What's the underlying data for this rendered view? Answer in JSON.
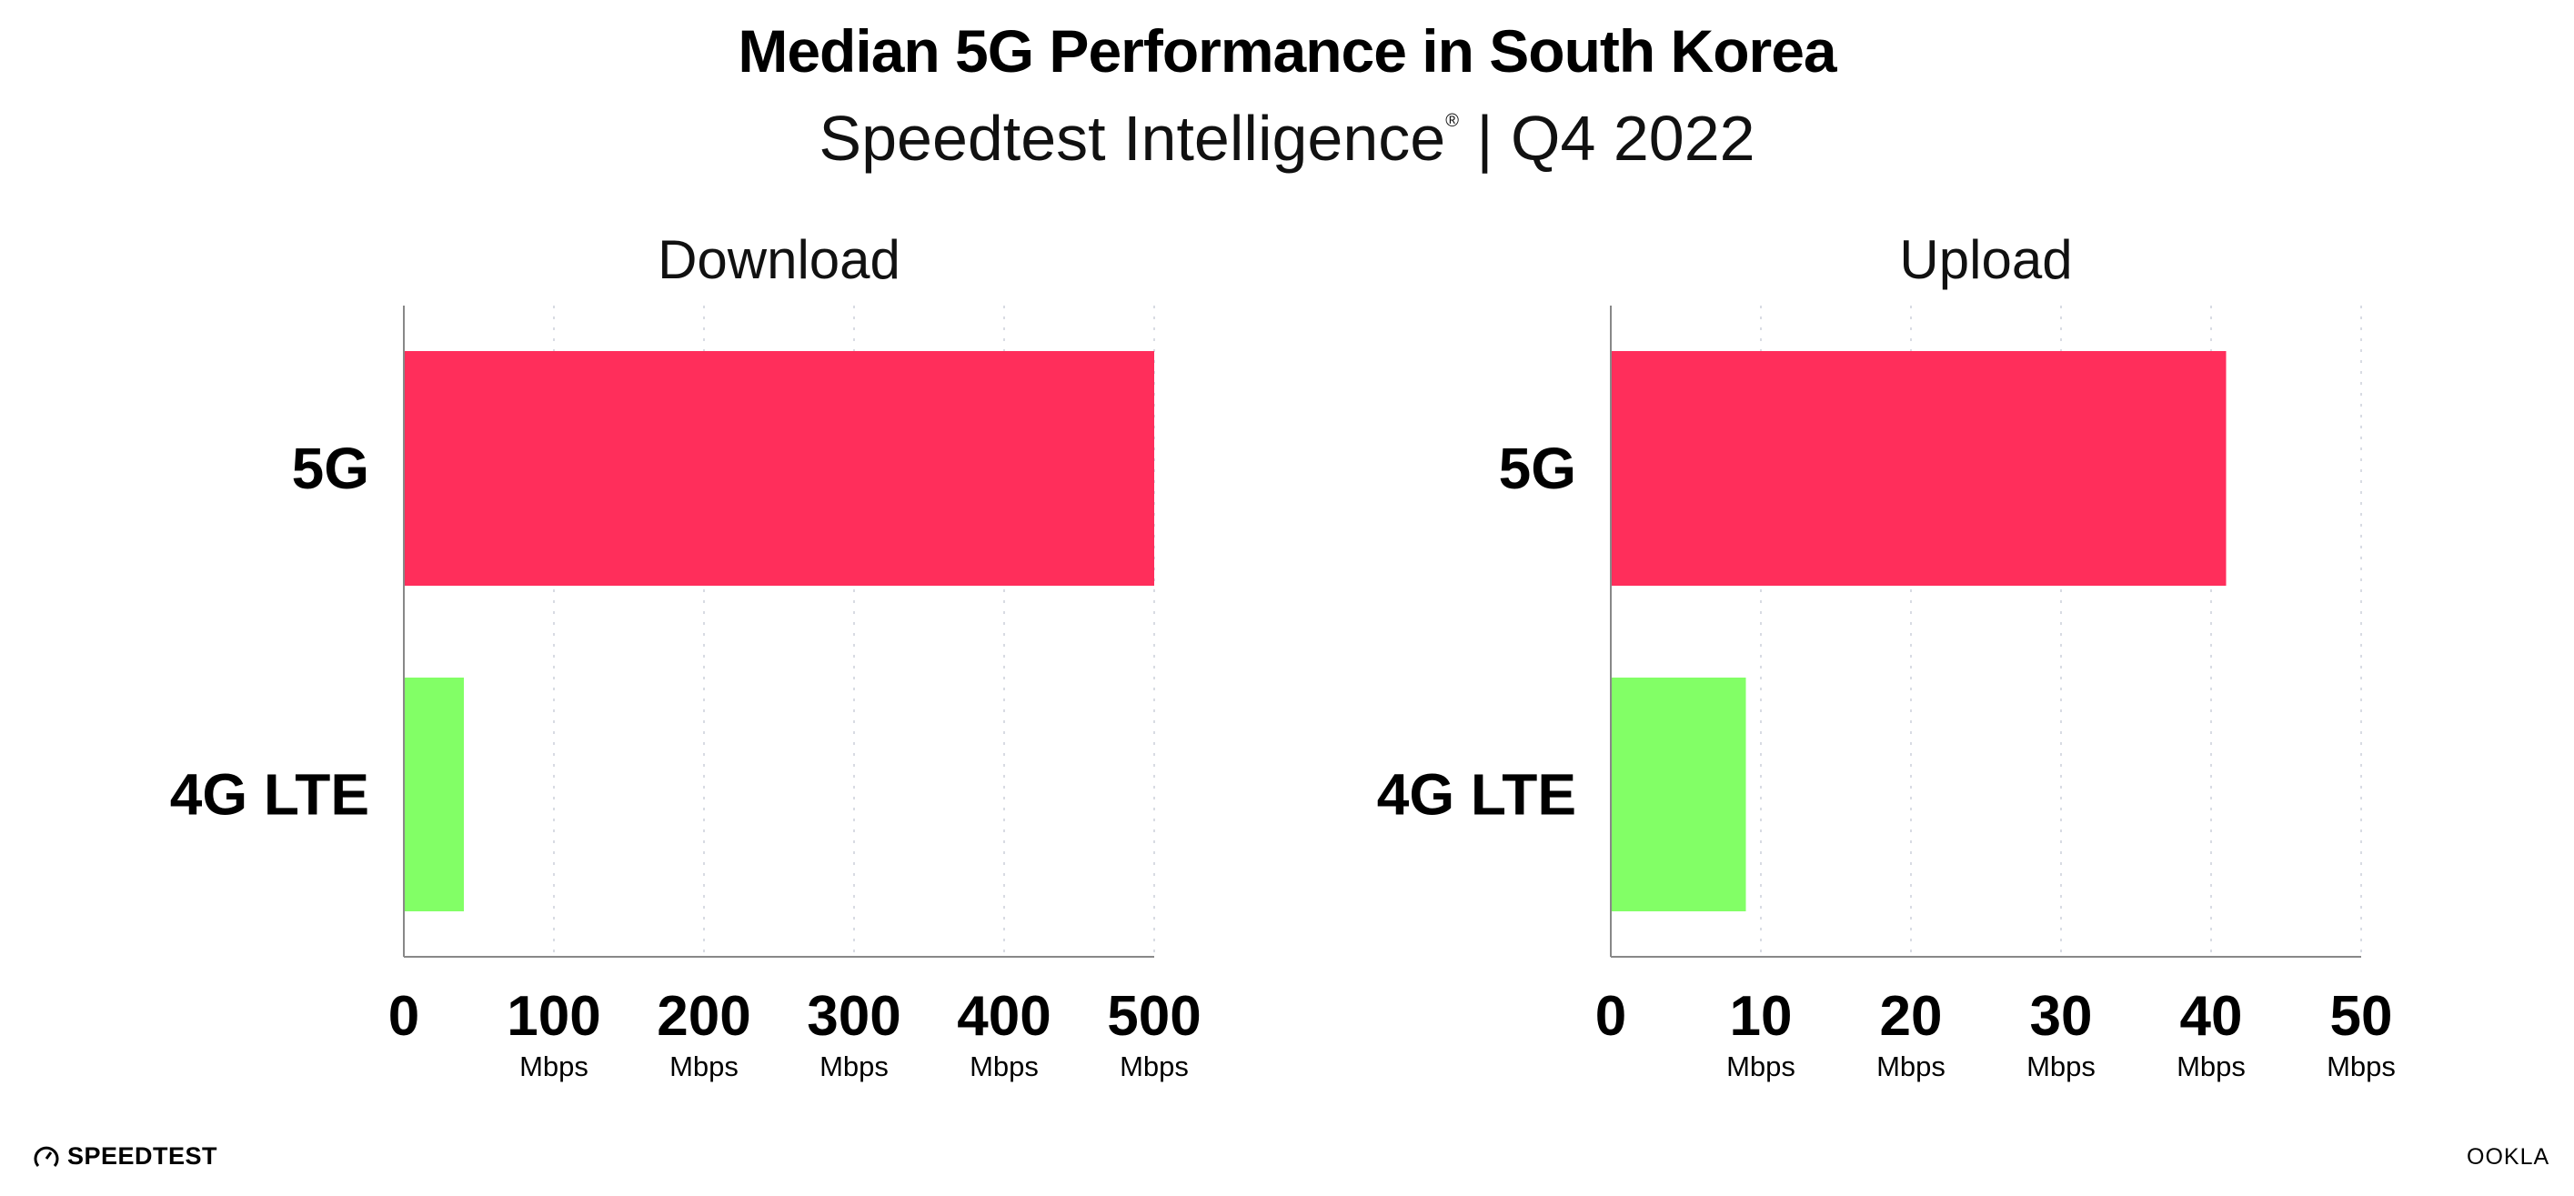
{
  "header": {
    "title": "Median 5G Performance in South Korea",
    "subtitle_main": "Speedtest Intelligence",
    "subtitle_mark": "®",
    "subtitle_period": " | Q4 2022"
  },
  "chart_data": [
    {
      "type": "bar",
      "orientation": "horizontal",
      "title": "Download",
      "categories": [
        "5G",
        "4G LTE"
      ],
      "values": [
        500,
        40
      ],
      "colors": [
        "#ff2e5b",
        "#82ff66"
      ],
      "xlim": [
        0,
        500
      ],
      "xticks": [
        "0",
        "100",
        "200",
        "300",
        "400",
        "500"
      ],
      "xtick_unit": "Mbps",
      "grid": "vertical dotted"
    },
    {
      "type": "bar",
      "orientation": "horizontal",
      "title": "Upload",
      "categories": [
        "5G",
        "4G LTE"
      ],
      "values": [
        41,
        9
      ],
      "colors": [
        "#ff2e5b",
        "#82ff66"
      ],
      "xlim": [
        0,
        50
      ],
      "xticks": [
        "0",
        "10",
        "20",
        "30",
        "40",
        "50"
      ],
      "xtick_unit": "Mbps",
      "grid": "vertical dotted"
    }
  ],
  "footer": {
    "left_logo": "SPEEDTEST",
    "right_logo": "OOKLA"
  }
}
